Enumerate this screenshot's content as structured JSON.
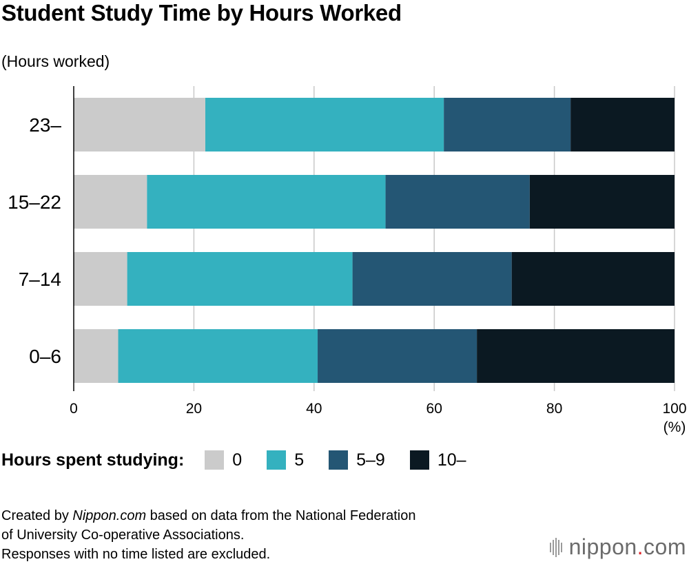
{
  "title": "Student Study Time by Hours Worked",
  "y_axis_label": "(Hours worked)",
  "x_axis_unit": "(%)",
  "legend": {
    "title": "Hours spent studying:",
    "items": [
      {
        "label": "0",
        "color": "#cbcbcb"
      },
      {
        "label": "5",
        "color": "#34b1bf"
      },
      {
        "label": "5–9",
        "color": "#245674"
      },
      {
        "label": "10–",
        "color": "#0b1922"
      }
    ]
  },
  "source": {
    "line1_prefix": "Created by ",
    "line1_italic": "Nippon.com",
    "line1_suffix": " based on data from the National Federation",
    "line2": "of University Co-operative Associations.",
    "line3": "Responses with no time listed are excluded."
  },
  "logo": {
    "name": "nippon",
    "dot": ".",
    "tld": "com"
  },
  "chart_data": {
    "type": "bar",
    "orientation": "horizontal",
    "stacked": true,
    "categories": [
      "23–",
      "15–22",
      "7–14",
      "0–6"
    ],
    "series": [
      {
        "name": "0",
        "color": "#cbcbcb",
        "values": [
          21.9,
          12.2,
          8.9,
          7.4
        ]
      },
      {
        "name": "5",
        "color": "#34b1bf",
        "values": [
          39.7,
          39.7,
          37.5,
          33.2
        ]
      },
      {
        "name": "5–9",
        "color": "#245674",
        "values": [
          21.1,
          24.0,
          26.5,
          26.5
        ]
      },
      {
        "name": "10–",
        "color": "#0b1922",
        "values": [
          17.3,
          24.1,
          27.1,
          32.9
        ]
      }
    ],
    "xlim": [
      0,
      100
    ],
    "xticks": [
      0,
      20,
      40,
      60,
      80,
      100
    ],
    "xlabel": "(%)",
    "ylabel": "(Hours worked)",
    "grid": true,
    "legend_position": "bottom"
  }
}
